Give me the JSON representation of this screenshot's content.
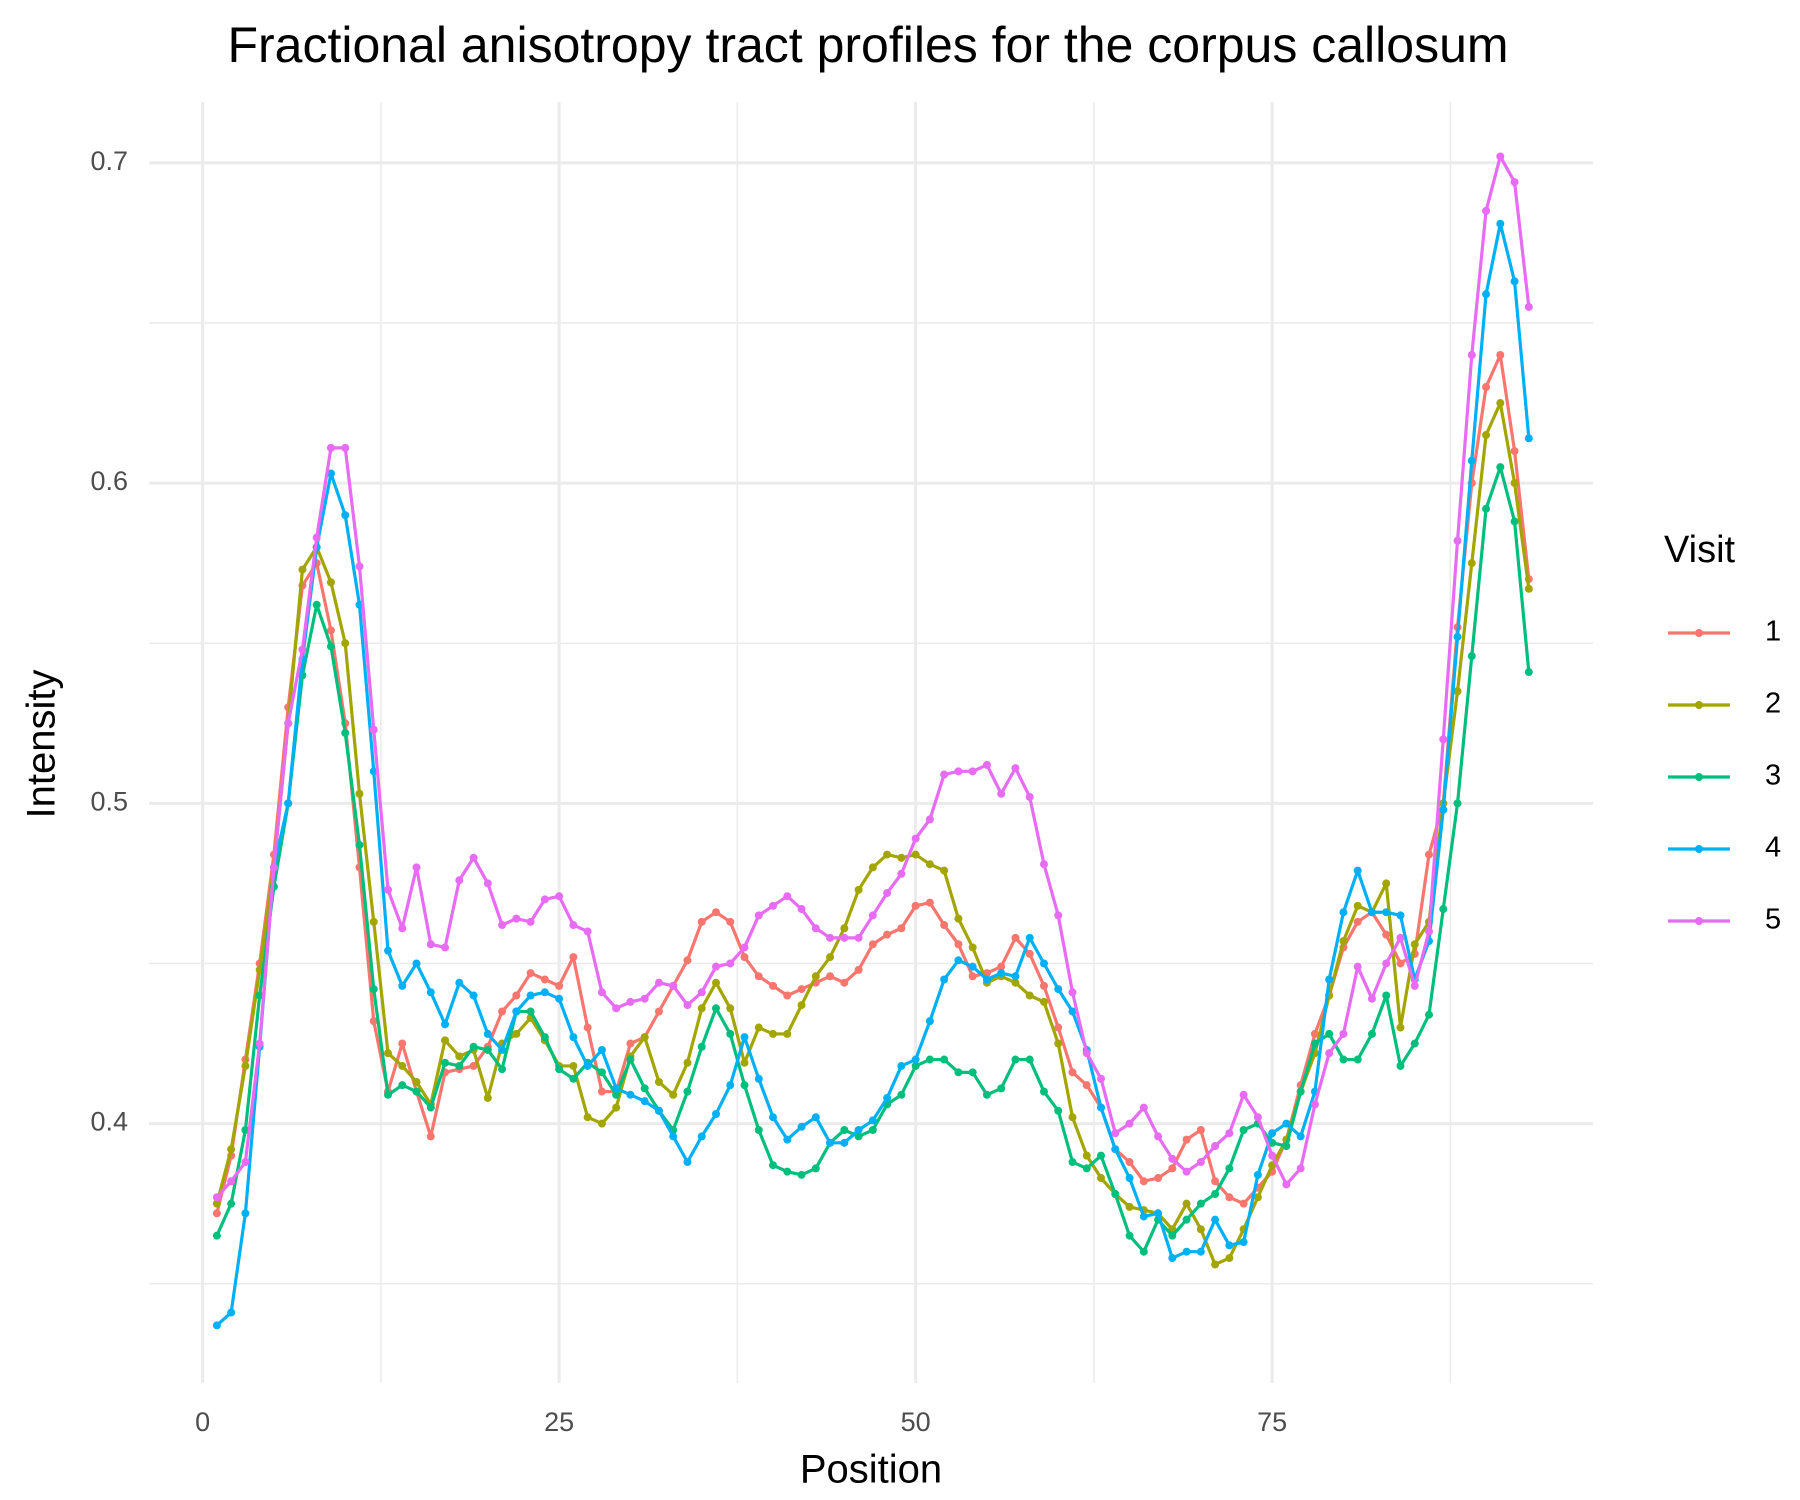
{
  "chart_data": {
    "type": "line",
    "title": "Fractional anisotropy tract profiles for the corpus callosum",
    "x_label": "Position",
    "y_label": "Intensity",
    "legend_title": "Visit",
    "legend": "right",
    "grid": true,
    "xlim": [
      -3.76,
      97.5
    ],
    "ylim": [
      0.319,
      0.719
    ],
    "xticks": [
      0,
      25,
      50,
      75
    ],
    "yticks": [
      0.4,
      0.5,
      0.6,
      0.7
    ],
    "x": [
      1,
      2,
      3,
      4,
      5,
      6,
      7,
      8,
      9,
      10,
      11,
      12,
      13,
      14,
      15,
      16,
      17,
      18,
      19,
      20,
      21,
      22,
      23,
      24,
      25,
      26,
      27,
      28,
      29,
      30,
      31,
      32,
      33,
      34,
      35,
      36,
      37,
      38,
      39,
      40,
      41,
      42,
      43,
      44,
      45,
      46,
      47,
      48,
      49,
      50,
      51,
      52,
      53,
      54,
      55,
      56,
      57,
      58,
      59,
      60,
      61,
      62,
      63,
      64,
      65,
      66,
      67,
      68,
      69,
      70,
      71,
      72,
      73,
      74,
      75,
      76,
      77,
      78,
      79,
      80,
      81,
      82,
      83,
      84,
      85,
      86,
      87,
      88,
      89,
      90,
      91,
      92,
      93
    ],
    "series": [
      {
        "name": "1",
        "color": "#F8766D",
        "values": [
          0.372,
          0.39,
          0.42,
          0.45,
          0.484,
          0.53,
          0.568,
          0.575,
          0.554,
          0.525,
          0.48,
          0.432,
          0.41,
          0.425,
          0.41,
          0.396,
          0.416,
          0.417,
          0.418,
          0.424,
          0.435,
          0.44,
          0.447,
          0.445,
          0.443,
          0.452,
          0.43,
          0.41,
          0.41,
          0.425,
          0.427,
          0.435,
          0.443,
          0.451,
          0.463,
          0.466,
          0.463,
          0.452,
          0.446,
          0.443,
          0.44,
          0.442,
          0.444,
          0.446,
          0.444,
          0.448,
          0.456,
          0.459,
          0.461,
          0.468,
          0.469,
          0.462,
          0.456,
          0.446,
          0.447,
          0.449,
          0.458,
          0.453,
          0.443,
          0.43,
          0.416,
          0.412,
          0.405,
          0.392,
          0.388,
          0.382,
          0.383,
          0.386,
          0.395,
          0.398,
          0.382,
          0.377,
          0.375,
          0.38,
          0.385,
          0.395,
          0.412,
          0.428,
          0.44,
          0.455,
          0.463,
          0.466,
          0.459,
          0.45,
          0.453,
          0.484,
          0.5,
          0.555,
          0.6,
          0.63,
          0.64,
          0.61,
          0.57
        ]
      },
      {
        "name": "2",
        "color": "#A3A500",
        "values": [
          0.375,
          0.392,
          0.418,
          0.448,
          0.48,
          0.525,
          0.573,
          0.58,
          0.569,
          0.55,
          0.503,
          0.463,
          0.422,
          0.418,
          0.413,
          0.406,
          0.426,
          0.421,
          0.423,
          0.408,
          0.425,
          0.428,
          0.433,
          0.426,
          0.418,
          0.418,
          0.402,
          0.4,
          0.405,
          0.421,
          0.427,
          0.413,
          0.409,
          0.419,
          0.436,
          0.444,
          0.436,
          0.419,
          0.43,
          0.428,
          0.428,
          0.437,
          0.446,
          0.452,
          0.461,
          0.473,
          0.48,
          0.484,
          0.483,
          0.484,
          0.481,
          0.479,
          0.464,
          0.455,
          0.444,
          0.446,
          0.444,
          0.44,
          0.438,
          0.425,
          0.402,
          0.39,
          0.383,
          0.378,
          0.374,
          0.373,
          0.372,
          0.367,
          0.375,
          0.367,
          0.356,
          0.358,
          0.367,
          0.377,
          0.387,
          0.395,
          0.41,
          0.422,
          0.44,
          0.457,
          0.468,
          0.466,
          0.475,
          0.43,
          0.456,
          0.463,
          0.5,
          0.535,
          0.575,
          0.615,
          0.625,
          0.6,
          0.567
        ]
      },
      {
        "name": "3",
        "color": "#00BF7D",
        "values": [
          0.365,
          0.375,
          0.398,
          0.44,
          0.474,
          0.5,
          0.54,
          0.562,
          0.549,
          0.522,
          0.487,
          0.442,
          0.409,
          0.412,
          0.41,
          0.405,
          0.419,
          0.418,
          0.424,
          0.423,
          0.417,
          0.435,
          0.435,
          0.427,
          0.417,
          0.414,
          0.419,
          0.416,
          0.409,
          0.42,
          0.411,
          0.404,
          0.398,
          0.41,
          0.424,
          0.436,
          0.428,
          0.412,
          0.398,
          0.387,
          0.385,
          0.384,
          0.386,
          0.394,
          0.398,
          0.396,
          0.398,
          0.406,
          0.409,
          0.418,
          0.42,
          0.42,
          0.416,
          0.416,
          0.409,
          0.411,
          0.42,
          0.42,
          0.41,
          0.404,
          0.388,
          0.386,
          0.39,
          0.378,
          0.365,
          0.36,
          0.37,
          0.365,
          0.37,
          0.375,
          0.378,
          0.386,
          0.398,
          0.4,
          0.394,
          0.393,
          0.41,
          0.425,
          0.428,
          0.42,
          0.42,
          0.428,
          0.44,
          0.418,
          0.425,
          0.434,
          0.467,
          0.5,
          0.546,
          0.592,
          0.605,
          0.588,
          0.541
        ]
      },
      {
        "name": "4",
        "color": "#00B0F6",
        "values": [
          0.337,
          0.341,
          0.372,
          0.424,
          0.48,
          0.5,
          0.545,
          0.58,
          0.603,
          0.59,
          0.562,
          0.51,
          0.454,
          0.443,
          0.45,
          0.441,
          0.431,
          0.444,
          0.44,
          0.428,
          0.423,
          0.435,
          0.44,
          0.441,
          0.439,
          0.427,
          0.418,
          0.423,
          0.411,
          0.409,
          0.407,
          0.404,
          0.396,
          0.388,
          0.396,
          0.403,
          0.412,
          0.427,
          0.414,
          0.402,
          0.395,
          0.399,
          0.402,
          0.394,
          0.394,
          0.398,
          0.401,
          0.408,
          0.418,
          0.42,
          0.432,
          0.445,
          0.451,
          0.449,
          0.445,
          0.447,
          0.446,
          0.458,
          0.45,
          0.442,
          0.435,
          0.423,
          0.405,
          0.392,
          0.383,
          0.371,
          0.372,
          0.358,
          0.36,
          0.36,
          0.37,
          0.362,
          0.363,
          0.384,
          0.397,
          0.4,
          0.396,
          0.41,
          0.445,
          0.466,
          0.479,
          0.466,
          0.466,
          0.465,
          0.445,
          0.457,
          0.498,
          0.552,
          0.607,
          0.659,
          0.681,
          0.663,
          0.614
        ]
      },
      {
        "name": "5",
        "color": "#E76BF3",
        "values": [
          0.377,
          0.382,
          0.388,
          0.425,
          0.48,
          0.525,
          0.548,
          0.583,
          0.611,
          0.611,
          0.574,
          0.523,
          0.473,
          0.461,
          0.48,
          0.456,
          0.455,
          0.476,
          0.483,
          0.475,
          0.462,
          0.464,
          0.463,
          0.47,
          0.471,
          0.462,
          0.46,
          0.441,
          0.436,
          0.438,
          0.439,
          0.444,
          0.443,
          0.437,
          0.441,
          0.449,
          0.45,
          0.455,
          0.465,
          0.468,
          0.471,
          0.467,
          0.461,
          0.458,
          0.458,
          0.458,
          0.465,
          0.472,
          0.478,
          0.489,
          0.495,
          0.509,
          0.51,
          0.51,
          0.512,
          0.503,
          0.511,
          0.502,
          0.481,
          0.465,
          0.441,
          0.422,
          0.414,
          0.397,
          0.4,
          0.405,
          0.396,
          0.389,
          0.385,
          0.388,
          0.393,
          0.397,
          0.409,
          0.402,
          0.39,
          0.381,
          0.386,
          0.406,
          0.422,
          0.428,
          0.449,
          0.439,
          0.45,
          0.458,
          0.443,
          0.46,
          0.52,
          0.582,
          0.64,
          0.685,
          0.702,
          0.694,
          0.655
        ]
      }
    ]
  }
}
